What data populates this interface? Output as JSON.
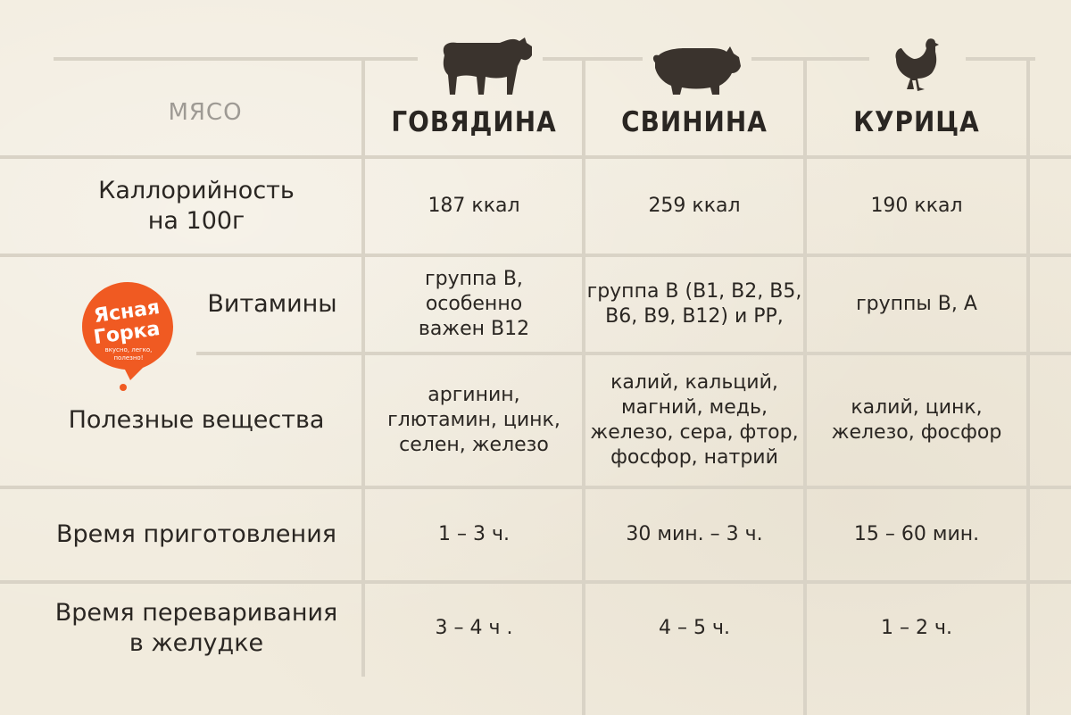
{
  "header": {
    "meat_label": "МЯСО",
    "columns": [
      {
        "title": "ГОВЯДИНА",
        "icon": "cow-icon"
      },
      {
        "title": "СВИНИНА",
        "icon": "pig-icon"
      },
      {
        "title": "КУРИЦА",
        "icon": "chicken-icon"
      }
    ]
  },
  "logo": {
    "line1": "Ясная",
    "line2": "Горка",
    "tagline1": "вкусно, легко,",
    "tagline2": "полезно!",
    "color": "#f05a22"
  },
  "rows": [
    {
      "label": "Каллорийность\nна 100г",
      "values": [
        "187 ккал",
        "259 ккал",
        "190 ккал"
      ]
    },
    {
      "label": "Витамины",
      "values": [
        "группа В,\nособенно\nважен В12",
        "группа В (В1, В2, В5,\nВ6, В9, В12) и РР,",
        "группы В, А"
      ]
    },
    {
      "label": "Полезные вещества",
      "values": [
        "аргинин,\nглютамин, цинк,\nселен, железо",
        "калий, кальций,\nмагний, медь,\nжелезо, сера, фтор,\nфосфор, натрий",
        "калий, цинк,\nжелезо, фосфор"
      ]
    },
    {
      "label": "Время приготовления",
      "values": [
        "1 – 3 ч.",
        "30 мин. – 3 ч.",
        "15 – 60 мин."
      ]
    },
    {
      "label": "Время переваривания\nв желудке",
      "values": [
        "3 – 4 ч .",
        "4 – 5 ч.",
        "1 – 2 ч."
      ]
    }
  ],
  "colors": {
    "grid": "#d9d3c6",
    "background": "#f1ebdd",
    "text": "#2a2622",
    "muted": "#9e9a94",
    "silhouette": "#3a332d"
  }
}
